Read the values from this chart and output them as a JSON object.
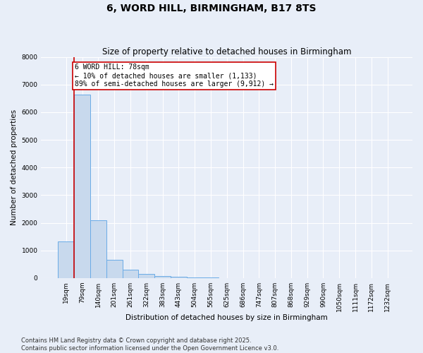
{
  "title": "6, WORD HILL, BIRMINGHAM, B17 8TS",
  "subtitle": "Size of property relative to detached houses in Birmingham",
  "xlabel": "Distribution of detached houses by size in Birmingham",
  "ylabel": "Number of detached properties",
  "bar_color": "#c8d9ed",
  "bar_edge_color": "#6aabe6",
  "categories": [
    "19sqm",
    "79sqm",
    "140sqm",
    "201sqm",
    "261sqm",
    "322sqm",
    "383sqm",
    "443sqm",
    "504sqm",
    "565sqm",
    "625sqm",
    "686sqm",
    "747sqm",
    "807sqm",
    "868sqm",
    "929sqm",
    "990sqm",
    "1050sqm",
    "1111sqm",
    "1172sqm",
    "1232sqm"
  ],
  "values": [
    1330,
    6650,
    2100,
    660,
    310,
    140,
    80,
    40,
    20,
    10,
    5,
    3,
    2,
    1,
    1,
    1,
    0,
    0,
    0,
    0,
    0
  ],
  "ylim": [
    0,
    8000
  ],
  "yticks": [
    0,
    1000,
    2000,
    3000,
    4000,
    5000,
    6000,
    7000,
    8000
  ],
  "annotation_text": "6 WORD HILL: 78sqm\n← 10% of detached houses are smaller (1,133)\n89% of semi-detached houses are larger (9,912) →",
  "vline_x": 0.5,
  "vline_color": "#cc0000",
  "footer": "Contains HM Land Registry data © Crown copyright and database right 2025.\nContains public sector information licensed under the Open Government Licence v3.0.",
  "background_color": "#e8eef8",
  "grid_color": "#ffffff",
  "title_fontsize": 10,
  "subtitle_fontsize": 8.5,
  "axis_fontsize": 7.5,
  "tick_fontsize": 6.5,
  "footer_fontsize": 6,
  "annotation_fontsize": 7
}
